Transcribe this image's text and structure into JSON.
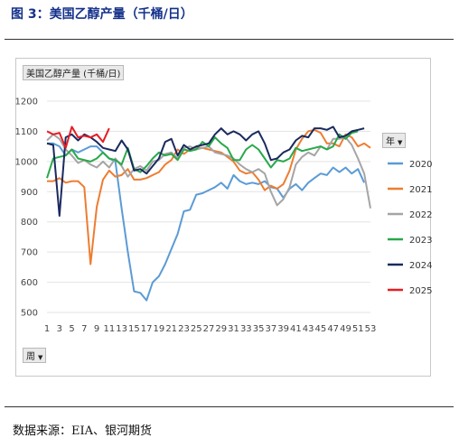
{
  "figure": {
    "title": "图 3：美国乙醇产量（千桶/日）",
    "source": "数据来源：EIA、银河期货",
    "field_button": "美国乙醇产量 (千桶/日)",
    "legend_button": "年",
    "axis_button": "周"
  },
  "colors": {
    "2020": "#5b9bd5",
    "2021": "#ed7d31",
    "2022": "#a5a5a5",
    "2023": "#29a84a",
    "2024": "#1a2a5e",
    "2025": "#e31e24"
  },
  "chart_data": {
    "type": "line",
    "title": "",
    "xlabel": "",
    "ylabel": "",
    "ylim": [
      500,
      1200
    ],
    "y_ticks": [
      500,
      600,
      700,
      800,
      900,
      1000,
      1100,
      1200
    ],
    "x_ticks": [
      1,
      3,
      5,
      7,
      9,
      11,
      13,
      15,
      17,
      19,
      21,
      23,
      25,
      27,
      29,
      31,
      33,
      35,
      37,
      39,
      41,
      43,
      45,
      47,
      49,
      51,
      53
    ],
    "grid": true,
    "legend_position": "right",
    "x": [
      1,
      2,
      3,
      4,
      5,
      6,
      7,
      8,
      9,
      10,
      11,
      12,
      13,
      14,
      15,
      16,
      17,
      18,
      19,
      20,
      21,
      22,
      23,
      24,
      25,
      26,
      27,
      28,
      29,
      30,
      31,
      32,
      33,
      34,
      35,
      36,
      37,
      38,
      39,
      40,
      41,
      42,
      43,
      44,
      45,
      46,
      47,
      48,
      49,
      50,
      51,
      52,
      53
    ],
    "series": [
      {
        "name": "2020",
        "values": [
          1060,
          1060,
          1050,
          1020,
          1040,
          1030,
          1040,
          1050,
          1050,
          1030,
          1010,
          1000,
          845,
          700,
          570,
          565,
          540,
          600,
          620,
          660,
          710,
          760,
          835,
          840,
          890,
          895,
          905,
          915,
          930,
          910,
          955,
          935,
          925,
          930,
          925,
          935,
          915,
          910,
          880,
          910,
          925,
          905,
          930,
          945,
          960,
          955,
          980,
          965,
          980,
          960,
          975,
          930,
          null
        ]
      },
      {
        "name": "2021",
        "values": [
          935,
          935,
          945,
          930,
          935,
          935,
          915,
          660,
          850,
          940,
          970,
          950,
          955,
          975,
          940,
          940,
          945,
          955,
          965,
          990,
          1005,
          1040,
          1025,
          1040,
          1045,
          1045,
          1040,
          1035,
          1030,
          1015,
          1000,
          970,
          960,
          965,
          940,
          905,
          920,
          910,
          925,
          970,
          1040,
          1075,
          1100,
          1105,
          1095,
          1060,
          1060,
          1050,
          1090,
          1080,
          1050,
          1060,
          1045
        ]
      },
      {
        "name": "2022",
        "values": [
          1070,
          1090,
          1075,
          1040,
          1020,
          995,
          1005,
          990,
          980,
          1000,
          980,
          1010,
          985,
          950,
          975,
          985,
          970,
          1000,
          1005,
          1025,
          1030,
          1010,
          1045,
          1050,
          1040,
          1045,
          1050,
          1030,
          1025,
          1020,
          1010,
          990,
          975,
          965,
          975,
          960,
          900,
          855,
          875,
          915,
          990,
          1015,
          1030,
          1020,
          1050,
          1040,
          1075,
          1075,
          1080,
          1055,
          1010,
          960,
          845
        ]
      },
      {
        "name": "2023",
        "values": [
          945,
          1010,
          1015,
          1020,
          1040,
          1010,
          1005,
          1000,
          1010,
          1030,
          1010,
          1005,
          990,
          1045,
          975,
          965,
          985,
          1010,
          1030,
          1020,
          1025,
          1005,
          1040,
          1035,
          1040,
          1065,
          1050,
          1080,
          1060,
          1045,
          1005,
          1005,
          1040,
          1055,
          1040,
          1010,
          980,
          1005,
          1000,
          1010,
          1045,
          1035,
          1040,
          1045,
          1050,
          1040,
          1050,
          1090,
          1075,
          1095,
          1100,
          null,
          null
        ]
      },
      {
        "name": "2024",
        "values": [
          1060,
          1055,
          820,
          1080,
          1090,
          1070,
          1090,
          1080,
          1065,
          1045,
          1040,
          1035,
          1070,
          1040,
          970,
          975,
          960,
          985,
          1010,
          1065,
          1075,
          1020,
          1055,
          1040,
          1050,
          1055,
          1060,
          1090,
          1110,
          1090,
          1100,
          1090,
          1070,
          1090,
          1100,
          1060,
          1005,
          1010,
          1030,
          1040,
          1070,
          1085,
          1080,
          1110,
          1110,
          1105,
          1115,
          1080,
          1085,
          1100,
          1105,
          1110,
          null
        ]
      },
      {
        "name": "2025",
        "values": [
          1100,
          1090,
          1095,
          1045,
          1115,
          1080,
          1085,
          1080,
          1090,
          1065,
          1110,
          null,
          null,
          null,
          null,
          null,
          null,
          null,
          null,
          null,
          null,
          null,
          null,
          null,
          null,
          null,
          null,
          null,
          null,
          null,
          null,
          null,
          null,
          null,
          null,
          null,
          null,
          null,
          null,
          null,
          null,
          null,
          null,
          null,
          null,
          null,
          null,
          null,
          null,
          null,
          null,
          null,
          null
        ]
      }
    ]
  }
}
